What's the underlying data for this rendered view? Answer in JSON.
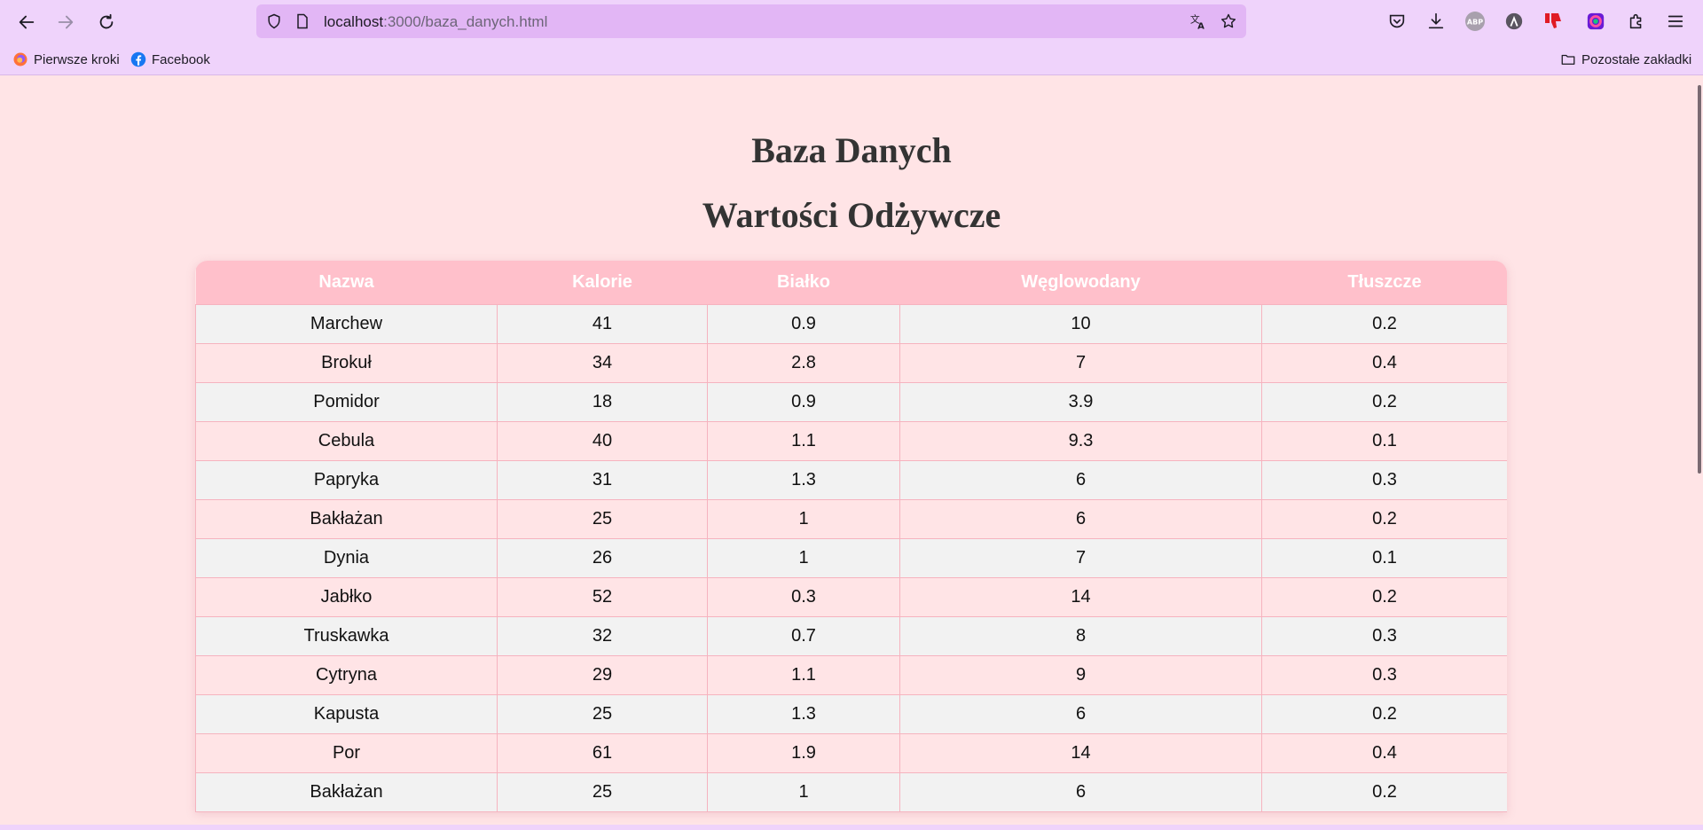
{
  "browser": {
    "url_host": "localhost",
    "url_rest": ":3000/baza_danych.html",
    "bookmarks": [
      {
        "label": "Pierwsze kroki",
        "icon": "firefox-icon"
      },
      {
        "label": "Facebook",
        "icon": "facebook-icon"
      }
    ],
    "other_bookmarks": "Pozostałe zakładki",
    "colors": {
      "toolbar": "#efd3fb",
      "urlbar": "#e2b6f5"
    }
  },
  "page": {
    "title": "Baza Danych",
    "subtitle": "Wartości Odżywcze",
    "colors": {
      "background": "#ffe4e6",
      "header": "#ffc0cb",
      "row_odd": "#f2f2f2",
      "row_even": "#ffe4e6"
    }
  },
  "table": {
    "headers": [
      "Nazwa",
      "Kalorie",
      "Białko",
      "Węglowodany",
      "Tłuszcze"
    ],
    "rows": [
      [
        "Marchew",
        "41",
        "0.9",
        "10",
        "0.2"
      ],
      [
        "Brokuł",
        "34",
        "2.8",
        "7",
        "0.4"
      ],
      [
        "Pomidor",
        "18",
        "0.9",
        "3.9",
        "0.2"
      ],
      [
        "Cebula",
        "40",
        "1.1",
        "9.3",
        "0.1"
      ],
      [
        "Papryka",
        "31",
        "1.3",
        "6",
        "0.3"
      ],
      [
        "Bakłażan",
        "25",
        "1",
        "6",
        "0.2"
      ],
      [
        "Dynia",
        "26",
        "1",
        "7",
        "0.1"
      ],
      [
        "Jabłko",
        "52",
        "0.3",
        "14",
        "0.2"
      ],
      [
        "Truskawka",
        "32",
        "0.7",
        "8",
        "0.3"
      ],
      [
        "Cytryna",
        "29",
        "1.1",
        "9",
        "0.3"
      ],
      [
        "Kapusta",
        "25",
        "1.3",
        "6",
        "0.2"
      ],
      [
        "Por",
        "61",
        "1.9",
        "14",
        "0.4"
      ],
      [
        "Bakłażan",
        "25",
        "1",
        "6",
        "0.2"
      ]
    ]
  }
}
